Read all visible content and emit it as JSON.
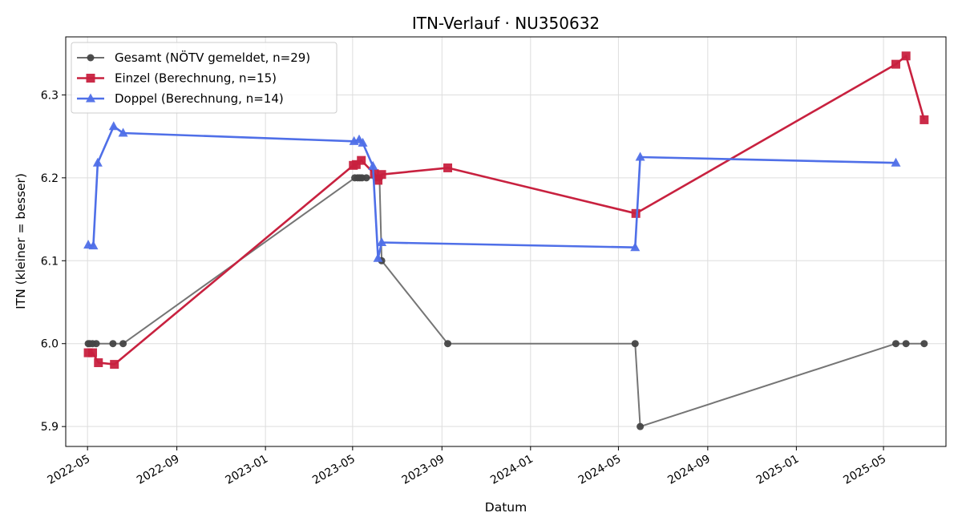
{
  "chart_data": {
    "type": "line",
    "title": "ITN-Verlauf · NU350632",
    "xlabel": "Datum",
    "ylabel": "ITN  (kleiner = besser)",
    "xlim": [
      "2022-04-01",
      "2025-07-26"
    ],
    "ylim": [
      5.876,
      6.37
    ],
    "grid": true,
    "legend_position": "top-left",
    "x_ticks": [
      "2022-05",
      "2022-09",
      "2023-01",
      "2023-05",
      "2023-09",
      "2024-01",
      "2024-05",
      "2024-09",
      "2025-01",
      "2025-05"
    ],
    "y_ticks": [
      "5.9",
      "6.0",
      "6.1",
      "6.2",
      "6.3"
    ],
    "series": [
      {
        "name": "Gesamt (NÖTV gemeldet, n=29)",
        "color": "#6e6e6e",
        "marker": "circle",
        "points": [
          [
            "2022-05-02",
            6.0
          ],
          [
            "2022-05-04",
            6.0
          ],
          [
            "2022-05-08",
            6.0
          ],
          [
            "2022-05-13",
            6.0
          ],
          [
            "2022-06-05",
            6.0
          ],
          [
            "2022-06-19",
            6.0
          ],
          [
            "2023-05-04",
            6.2
          ],
          [
            "2023-05-08",
            6.2
          ],
          [
            "2023-05-11",
            6.2
          ],
          [
            "2023-05-14",
            6.2
          ],
          [
            "2023-05-20",
            6.2
          ],
          [
            "2023-06-02",
            6.2
          ],
          [
            "2023-06-07",
            6.2
          ],
          [
            "2023-06-10",
            6.1
          ],
          [
            "2023-09-09",
            6.0
          ],
          [
            "2024-05-24",
            6.0
          ],
          [
            "2024-05-31",
            5.9
          ],
          [
            "2025-05-18",
            6.0
          ],
          [
            "2025-06-01",
            6.0
          ],
          [
            "2025-06-26",
            6.0
          ]
        ]
      },
      {
        "name": "Einzel (Berechnung, n=15)",
        "color": "#c8213f",
        "marker": "square",
        "points": [
          [
            "2022-05-02",
            5.989
          ],
          [
            "2022-05-08",
            5.989
          ],
          [
            "2022-05-16",
            5.977
          ],
          [
            "2022-06-07",
            5.975
          ],
          [
            "2023-05-02",
            6.215
          ],
          [
            "2023-05-06",
            6.216
          ],
          [
            "2023-05-13",
            6.221
          ],
          [
            "2023-05-31",
            6.205
          ],
          [
            "2023-06-05",
            6.197
          ],
          [
            "2023-06-10",
            6.204
          ],
          [
            "2023-09-09",
            6.212
          ],
          [
            "2024-05-25",
            6.157
          ],
          [
            "2025-05-18",
            6.337
          ],
          [
            "2025-06-01",
            6.347
          ],
          [
            "2025-06-26",
            6.27
          ]
        ]
      },
      {
        "name": "Doppel (Berechnung, n=14)",
        "color": "#4f6fe8",
        "marker": "triangle",
        "points": [
          [
            "2022-05-02",
            6.119
          ],
          [
            "2022-05-09",
            6.118
          ],
          [
            "2022-05-15",
            6.218
          ],
          [
            "2022-06-06",
            6.262
          ],
          [
            "2022-06-19",
            6.254
          ],
          [
            "2023-05-03",
            6.244
          ],
          [
            "2023-05-10",
            6.246
          ],
          [
            "2023-05-15",
            6.242
          ],
          [
            "2023-05-29",
            6.214
          ],
          [
            "2023-06-05",
            6.103
          ],
          [
            "2023-06-10",
            6.122
          ],
          [
            "2024-05-24",
            6.116
          ],
          [
            "2024-05-31",
            6.225
          ],
          [
            "2025-05-18",
            6.218
          ]
        ]
      }
    ]
  }
}
